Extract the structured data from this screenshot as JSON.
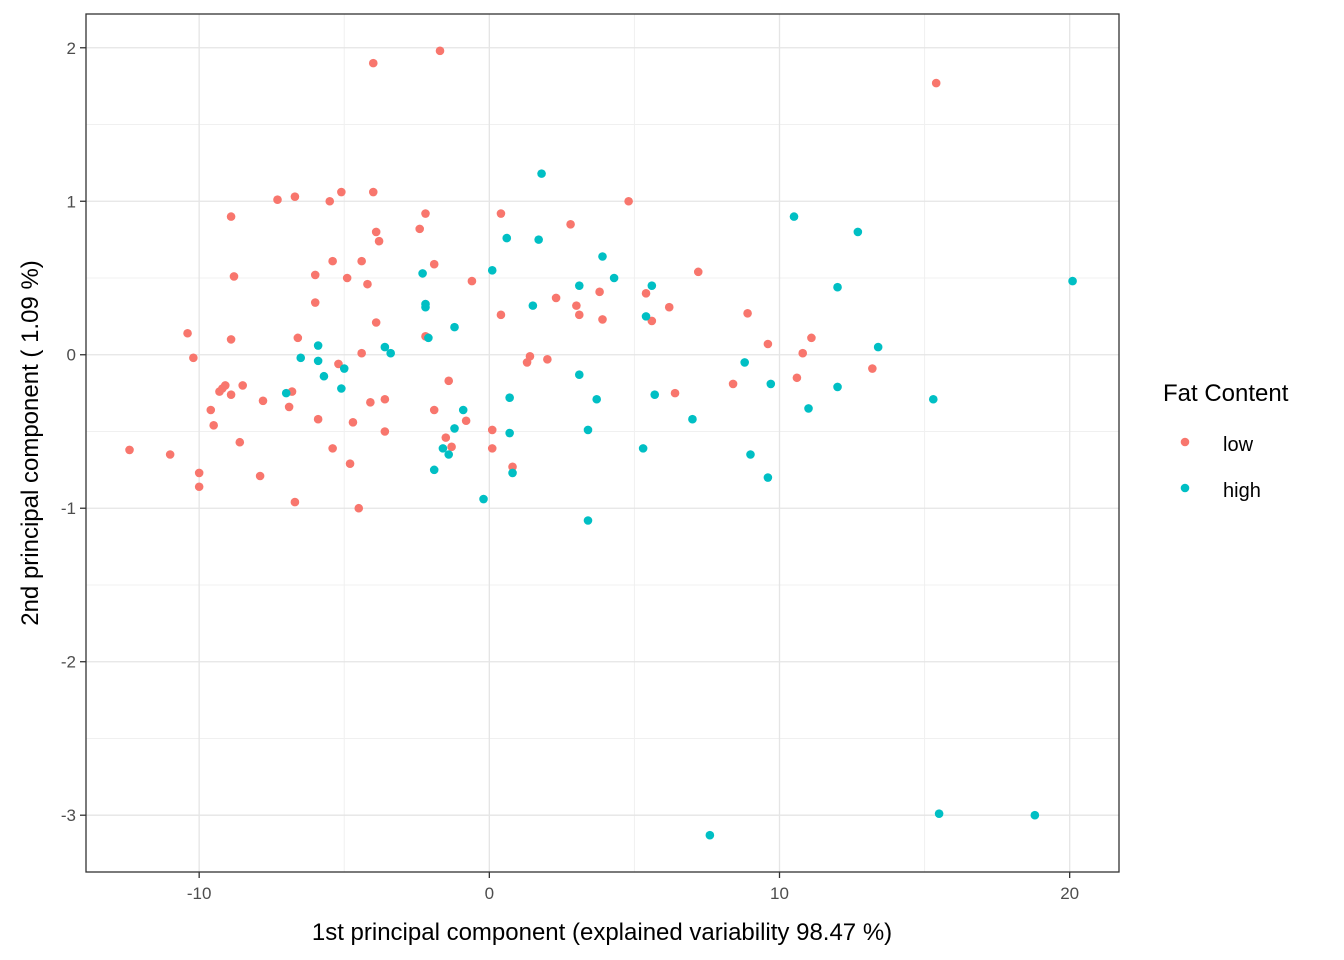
{
  "chart_data": {
    "type": "scatter",
    "title": "",
    "xlabel": "1st principal component (explained variability 98.47 %)",
    "ylabel": "2nd principal component ( 1.09 %)",
    "xlim": [
      -13.9,
      21.7
    ],
    "ylim": [
      -3.37,
      2.22
    ],
    "xticks": [
      -10,
      0,
      10,
      20
    ],
    "xtick_labels": [
      "-10",
      "0",
      "10",
      "20"
    ],
    "yticks": [
      -3,
      -2,
      -1,
      0,
      1,
      2
    ],
    "ytick_labels": [
      "-3",
      "-2",
      "-1",
      "0",
      "1",
      "2"
    ],
    "grid": true,
    "theme": "bw",
    "legend": {
      "title": "Fat Content",
      "position": "right",
      "entries": [
        "low",
        "high"
      ]
    },
    "series": [
      {
        "name": "low",
        "color": "#F8766D",
        "points": [
          [
            -12.4,
            -0.62
          ],
          [
            -11.0,
            -0.65
          ],
          [
            -10.4,
            0.14
          ],
          [
            -10.2,
            -0.02
          ],
          [
            -10.0,
            -0.77
          ],
          [
            -10.0,
            -0.86
          ],
          [
            -9.6,
            -0.36
          ],
          [
            -9.5,
            -0.46
          ],
          [
            -9.3,
            -0.24
          ],
          [
            -9.2,
            -0.22
          ],
          [
            -9.1,
            -0.2
          ],
          [
            -8.9,
            0.9
          ],
          [
            -8.9,
            -0.26
          ],
          [
            -8.9,
            0.1
          ],
          [
            -8.8,
            0.51
          ],
          [
            -8.6,
            -0.57
          ],
          [
            -8.5,
            -0.2
          ],
          [
            -7.9,
            -0.79
          ],
          [
            -7.8,
            -0.3
          ],
          [
            -7.3,
            1.01
          ],
          [
            -6.9,
            -0.34
          ],
          [
            -6.8,
            -0.24
          ],
          [
            -6.7,
            1.03
          ],
          [
            -6.7,
            -0.96
          ],
          [
            -6.6,
            0.11
          ],
          [
            -6.0,
            0.34
          ],
          [
            -6.0,
            0.52
          ],
          [
            -5.9,
            -0.42
          ],
          [
            -5.5,
            1.0
          ],
          [
            -5.4,
            0.61
          ],
          [
            -5.4,
            -0.61
          ],
          [
            -5.1,
            1.06
          ],
          [
            -5.2,
            -0.06
          ],
          [
            -4.9,
            0.5
          ],
          [
            -4.8,
            -0.71
          ],
          [
            -4.7,
            -0.44
          ],
          [
            -4.5,
            -1.0
          ],
          [
            -4.4,
            0.61
          ],
          [
            -4.4,
            0.01
          ],
          [
            -4.2,
            0.46
          ],
          [
            -4.1,
            -0.31
          ],
          [
            -4.0,
            1.06
          ],
          [
            -4.0,
            1.9
          ],
          [
            -3.9,
            0.8
          ],
          [
            -3.9,
            0.21
          ],
          [
            -3.8,
            0.74
          ],
          [
            -3.6,
            -0.29
          ],
          [
            -3.6,
            -0.5
          ],
          [
            -2.4,
            0.82
          ],
          [
            -2.2,
            0.92
          ],
          [
            -2.2,
            0.12
          ],
          [
            -1.9,
            0.59
          ],
          [
            -1.9,
            -0.36
          ],
          [
            -1.7,
            1.98
          ],
          [
            -1.5,
            -0.54
          ],
          [
            -1.4,
            -0.17
          ],
          [
            -1.3,
            -0.6
          ],
          [
            -0.8,
            -0.43
          ],
          [
            -0.6,
            0.48
          ],
          [
            0.1,
            -0.49
          ],
          [
            0.1,
            -0.61
          ],
          [
            0.4,
            0.92
          ],
          [
            0.4,
            0.26
          ],
          [
            0.8,
            -0.73
          ],
          [
            1.3,
            -0.05
          ],
          [
            1.4,
            -0.01
          ],
          [
            2.0,
            -0.03
          ],
          [
            2.3,
            0.37
          ],
          [
            2.8,
            0.85
          ],
          [
            3.0,
            0.32
          ],
          [
            3.1,
            0.26
          ],
          [
            3.8,
            0.41
          ],
          [
            3.9,
            0.23
          ],
          [
            4.8,
            1.0
          ],
          [
            5.4,
            0.4
          ],
          [
            5.6,
            0.22
          ],
          [
            6.2,
            0.31
          ],
          [
            6.4,
            -0.25
          ],
          [
            7.2,
            0.54
          ],
          [
            8.4,
            -0.19
          ],
          [
            8.9,
            0.27
          ],
          [
            9.6,
            0.07
          ],
          [
            10.6,
            -0.15
          ],
          [
            10.8,
            0.01
          ],
          [
            11.1,
            0.11
          ],
          [
            13.2,
            -0.09
          ],
          [
            15.4,
            1.77
          ]
        ]
      },
      {
        "name": "high",
        "color": "#00BFC4",
        "points": [
          [
            -7.0,
            -0.25
          ],
          [
            -6.5,
            -0.02
          ],
          [
            -5.9,
            0.06
          ],
          [
            -5.9,
            -0.04
          ],
          [
            -5.7,
            -0.14
          ],
          [
            -5.1,
            -0.22
          ],
          [
            -5.0,
            -0.09
          ],
          [
            -3.6,
            0.05
          ],
          [
            -3.4,
            0.01
          ],
          [
            -2.3,
            0.53
          ],
          [
            -2.2,
            0.33
          ],
          [
            -2.2,
            0.31
          ],
          [
            -2.1,
            0.11
          ],
          [
            -1.9,
            -0.75
          ],
          [
            -1.6,
            -0.61
          ],
          [
            -1.4,
            -0.65
          ],
          [
            -1.2,
            -0.48
          ],
          [
            -1.2,
            0.18
          ],
          [
            -0.9,
            -0.36
          ],
          [
            -0.2,
            -0.94
          ],
          [
            0.1,
            0.55
          ],
          [
            0.6,
            0.76
          ],
          [
            0.7,
            -0.28
          ],
          [
            0.7,
            -0.51
          ],
          [
            0.8,
            -0.77
          ],
          [
            1.5,
            0.32
          ],
          [
            1.7,
            0.75
          ],
          [
            1.8,
            1.18
          ],
          [
            3.1,
            0.45
          ],
          [
            3.1,
            -0.13
          ],
          [
            3.4,
            -0.49
          ],
          [
            3.4,
            -1.08
          ],
          [
            3.7,
            -0.29
          ],
          [
            3.9,
            0.64
          ],
          [
            4.3,
            0.5
          ],
          [
            5.3,
            -0.61
          ],
          [
            5.4,
            0.25
          ],
          [
            5.6,
            0.45
          ],
          [
            5.7,
            -0.26
          ],
          [
            7.0,
            -0.42
          ],
          [
            7.6,
            -3.13
          ],
          [
            8.8,
            -0.05
          ],
          [
            9.0,
            -0.65
          ],
          [
            9.6,
            -0.8
          ],
          [
            9.7,
            -0.19
          ],
          [
            10.5,
            0.9
          ],
          [
            11.0,
            -0.35
          ],
          [
            12.0,
            0.44
          ],
          [
            12.0,
            -0.21
          ],
          [
            12.7,
            0.8
          ],
          [
            13.4,
            0.05
          ],
          [
            15.3,
            -0.29
          ],
          [
            15.5,
            -2.99
          ],
          [
            18.8,
            -3.0
          ],
          [
            20.1,
            0.48
          ]
        ]
      }
    ]
  }
}
